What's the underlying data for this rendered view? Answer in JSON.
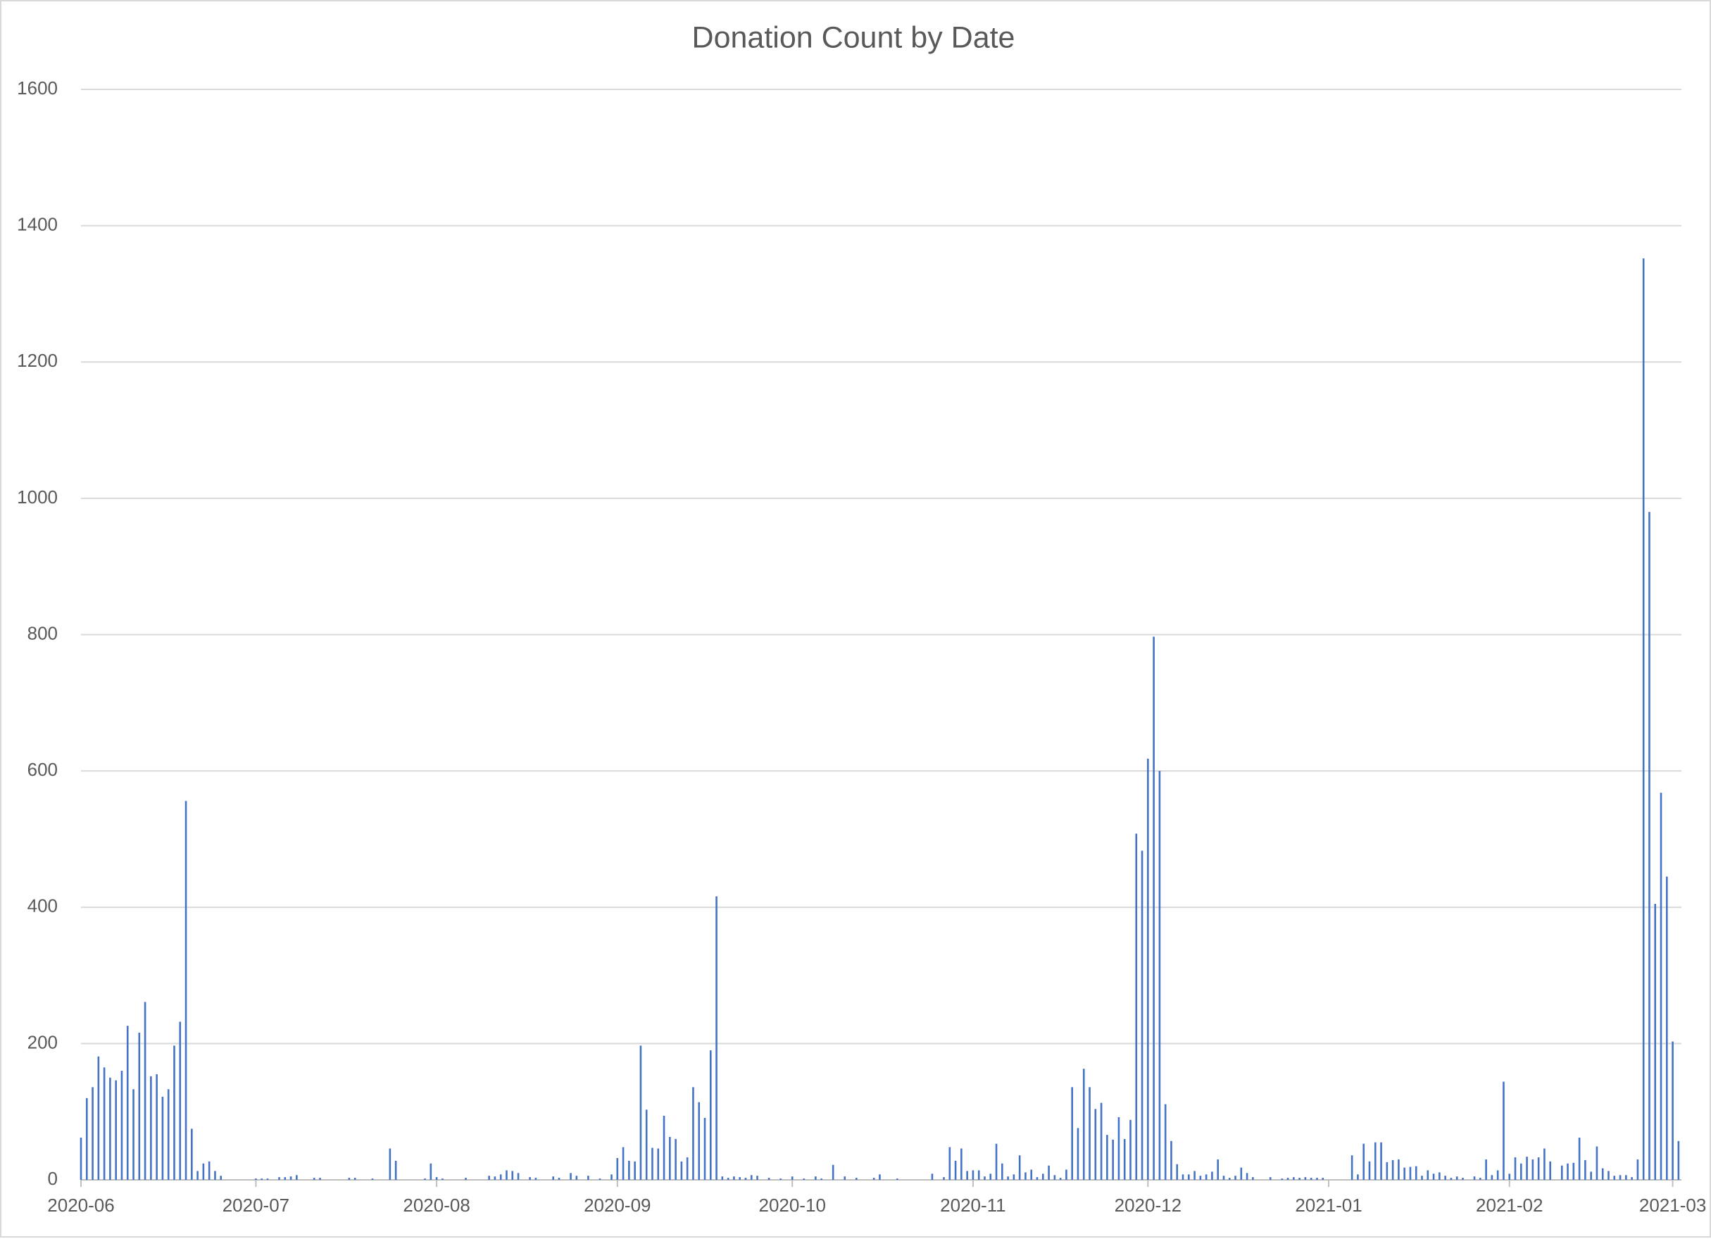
{
  "chart_data": {
    "type": "bar",
    "title": "Donation Count by Date",
    "categories": [
      "2020-06",
      null,
      null,
      null,
      null,
      null,
      null,
      null,
      null,
      null,
      null,
      null,
      null,
      null,
      null,
      null,
      null,
      null,
      null,
      null,
      null,
      null,
      null,
      null,
      null,
      null,
      null,
      null,
      null,
      null,
      "2020-07",
      null,
      null,
      null,
      null,
      null,
      null,
      null,
      null,
      null,
      null,
      null,
      null,
      null,
      null,
      null,
      null,
      null,
      null,
      null,
      null,
      null,
      null,
      null,
      null,
      null,
      null,
      null,
      null,
      null,
      null,
      "2020-08",
      null,
      null,
      null,
      null,
      null,
      null,
      null,
      null,
      null,
      null,
      null,
      null,
      null,
      null,
      null,
      null,
      null,
      null,
      null,
      null,
      null,
      null,
      null,
      null,
      null,
      null,
      null,
      null,
      null,
      null,
      "2020-09",
      null,
      null,
      null,
      null,
      null,
      null,
      null,
      null,
      null,
      null,
      null,
      null,
      null,
      null,
      null,
      null,
      null,
      null,
      null,
      null,
      null,
      null,
      null,
      null,
      null,
      null,
      null,
      null,
      null,
      "2020-10",
      null,
      null,
      null,
      null,
      null,
      null,
      null,
      null,
      null,
      null,
      null,
      null,
      null,
      null,
      null,
      null,
      null,
      null,
      null,
      null,
      null,
      null,
      null,
      null,
      null,
      null,
      null,
      null,
      null,
      null,
      "2020-11",
      null,
      null,
      null,
      null,
      null,
      null,
      null,
      null,
      null,
      null,
      null,
      null,
      null,
      null,
      null,
      null,
      null,
      null,
      null,
      null,
      null,
      null,
      null,
      null,
      null,
      null,
      null,
      null,
      null,
      "2020-12",
      null,
      null,
      null,
      null,
      null,
      null,
      null,
      null,
      null,
      null,
      null,
      null,
      null,
      null,
      null,
      null,
      null,
      null,
      null,
      null,
      null,
      null,
      null,
      null,
      null,
      null,
      null,
      null,
      null,
      null,
      "2021-01",
      null,
      null,
      null,
      null,
      null,
      null,
      null,
      null,
      null,
      null,
      null,
      null,
      null,
      null,
      null,
      null,
      null,
      null,
      null,
      null,
      null,
      null,
      null,
      null,
      null,
      null,
      null,
      null,
      null,
      null,
      "2021-02",
      null,
      null,
      null,
      null,
      null,
      null,
      null,
      null,
      null,
      null,
      null,
      null,
      null,
      null,
      null,
      null,
      null,
      null,
      null,
      null,
      null,
      null,
      null,
      null,
      null,
      null,
      null,
      "2021-03",
      null
    ],
    "values": [
      62,
      120,
      136,
      181,
      165,
      150,
      146,
      160,
      226,
      133,
      216,
      261,
      152,
      155,
      122,
      133,
      197,
      232,
      556,
      75,
      13,
      24,
      27,
      13,
      6,
      0,
      0,
      0,
      0,
      0,
      2,
      2,
      2,
      0,
      4,
      4,
      5,
      7,
      0,
      0,
      3,
      3,
      0,
      0,
      0,
      0,
      3,
      3,
      0,
      0,
      2,
      0,
      0,
      46,
      28,
      0,
      0,
      0,
      0,
      2,
      24,
      4,
      2,
      0,
      0,
      0,
      3,
      0,
      0,
      0,
      6,
      5,
      8,
      14,
      13,
      10,
      0,
      4,
      3,
      0,
      0,
      5,
      3,
      0,
      10,
      6,
      0,
      6,
      0,
      2,
      0,
      8,
      32,
      48,
      28,
      27,
      197,
      103,
      47,
      46,
      94,
      63,
      60,
      27,
      33,
      136,
      114,
      91,
      190,
      416,
      5,
      3,
      5,
      4,
      3,
      7,
      6,
      0,
      3,
      0,
      2,
      0,
      5,
      0,
      2,
      0,
      5,
      2,
      0,
      22,
      0,
      5,
      0,
      3,
      0,
      0,
      3,
      8,
      0,
      0,
      2,
      0,
      0,
      0,
      0,
      0,
      9,
      0,
      4,
      48,
      28,
      46,
      13,
      14,
      14,
      5,
      9,
      53,
      24,
      5,
      8,
      36,
      11,
      15,
      4,
      9,
      21,
      7,
      3,
      15,
      136,
      76,
      163,
      136,
      104,
      113,
      66,
      59,
      92,
      60,
      88,
      508,
      483,
      618,
      797,
      600,
      111,
      57,
      23,
      8,
      8,
      13,
      6,
      8,
      12,
      30,
      6,
      3,
      6,
      18,
      10,
      4,
      0,
      0,
      4,
      0,
      2,
      3,
      4,
      3,
      4,
      3,
      3,
      3,
      0,
      0,
      0,
      0,
      36,
      8,
      53,
      27,
      55,
      55,
      26,
      29,
      30,
      18,
      19,
      20,
      6,
      14,
      9,
      11,
      6,
      3,
      5,
      3,
      0,
      5,
      3,
      30,
      7,
      14,
      144,
      9,
      33,
      24,
      34,
      30,
      33,
      46,
      27,
      0,
      21,
      24,
      25,
      62,
      29,
      12,
      49,
      17,
      13,
      6,
      7,
      7,
      4,
      30,
      1352,
      980,
      405,
      568,
      445,
      203,
      57
    ],
    "color": "#4472c4",
    "ylim": [
      0,
      1600
    ],
    "yticks": [
      0,
      200,
      400,
      600,
      800,
      1000,
      1200,
      1400,
      1600
    ],
    "grid": true
  }
}
